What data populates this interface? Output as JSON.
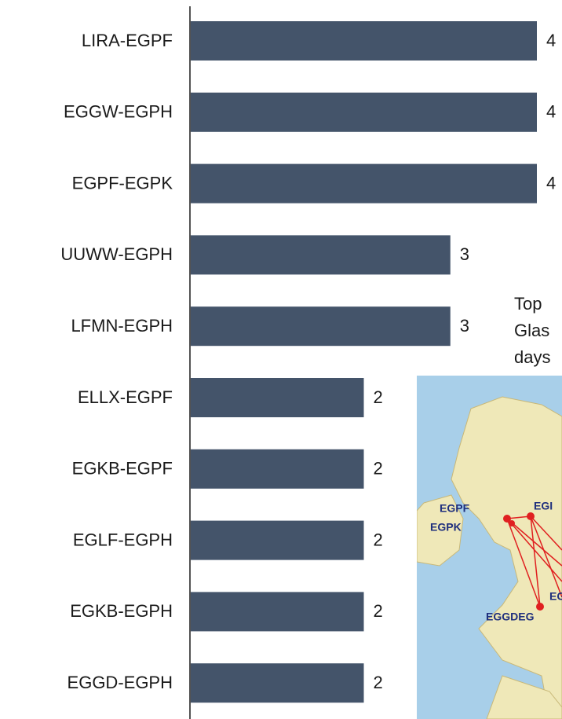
{
  "chart_data": {
    "type": "bar",
    "orientation": "horizontal",
    "categories": [
      "LIRA-EGPF",
      "EGGW-EGPH",
      "EGPF-EGPK",
      "UUWW-EGPH",
      "LFMN-EGPH",
      "ELLX-EGPF",
      "EGKB-EGPF",
      "EGLF-EGPH",
      "EGKB-EGPH",
      "EGGD-EGPH"
    ],
    "values": [
      4,
      4,
      4,
      3,
      3,
      2,
      2,
      2,
      2,
      2
    ],
    "color": "#44546a",
    "xlim": [
      0,
      4
    ],
    "annotation": [
      "Top",
      "Glas",
      "days"
    ],
    "map_labels": [
      "EGPF",
      "EGPK",
      "EGI",
      "EGL",
      "EGGDEG"
    ]
  }
}
